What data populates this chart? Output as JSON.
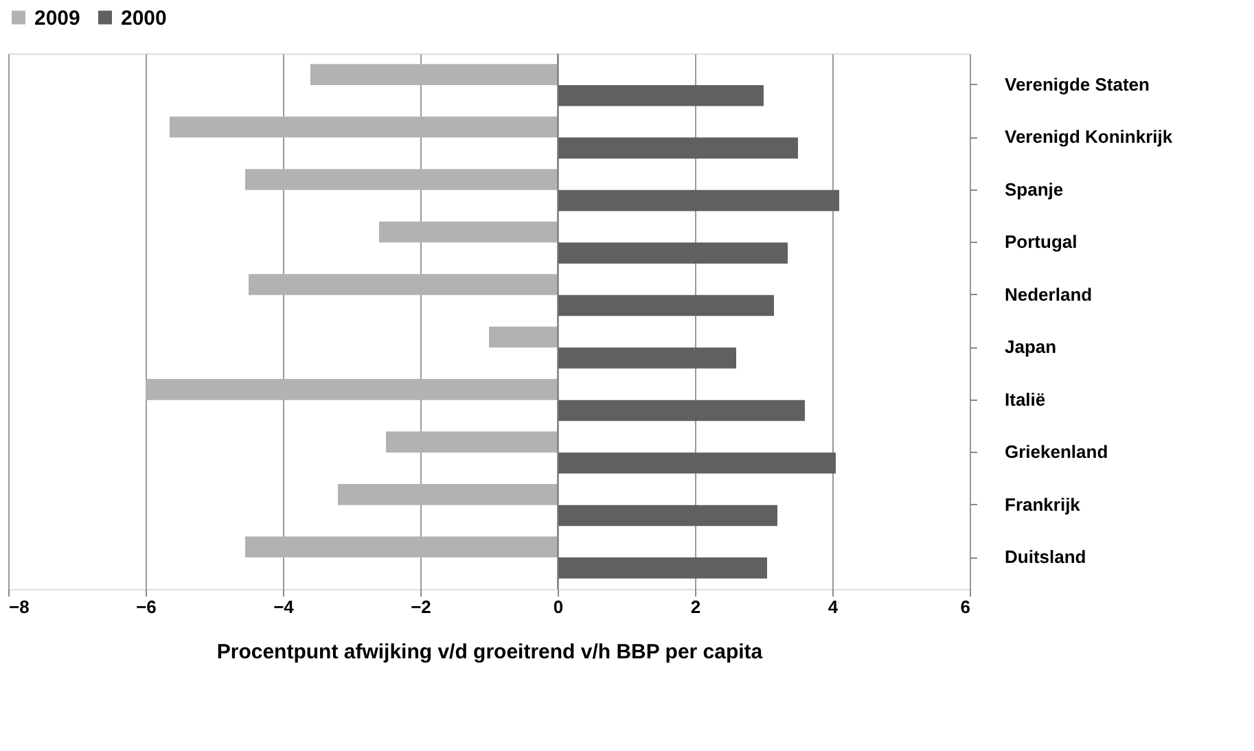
{
  "chart_data": {
    "type": "bar",
    "orientation": "horizontal",
    "xlabel": "Procentpunt afwijking v/d groeitrend v/h BBP per capita",
    "categories": [
      "Verenigde Staten",
      "Verenigd Koninkrijk",
      "Spanje",
      "Portugal",
      "Nederland",
      "Japan",
      "Italië",
      "Griekenland",
      "Frankrijk",
      "Duitsland"
    ],
    "series": [
      {
        "name": "2009",
        "color": "#b2b2b2",
        "values": [
          -3.6,
          -5.65,
          -4.55,
          -2.6,
          -4.5,
          -1.0,
          -6.0,
          -2.5,
          -3.2,
          -4.55
        ]
      },
      {
        "name": "2000",
        "color": "#606060",
        "values": [
          3.0,
          3.5,
          4.1,
          3.35,
          3.15,
          2.6,
          3.6,
          4.05,
          3.2,
          3.05
        ]
      }
    ],
    "xlim": [
      -8,
      6
    ],
    "xticks": [
      -8,
      -6,
      -4,
      -2,
      0,
      2,
      4,
      6
    ],
    "grid": "x",
    "legend": "top"
  }
}
